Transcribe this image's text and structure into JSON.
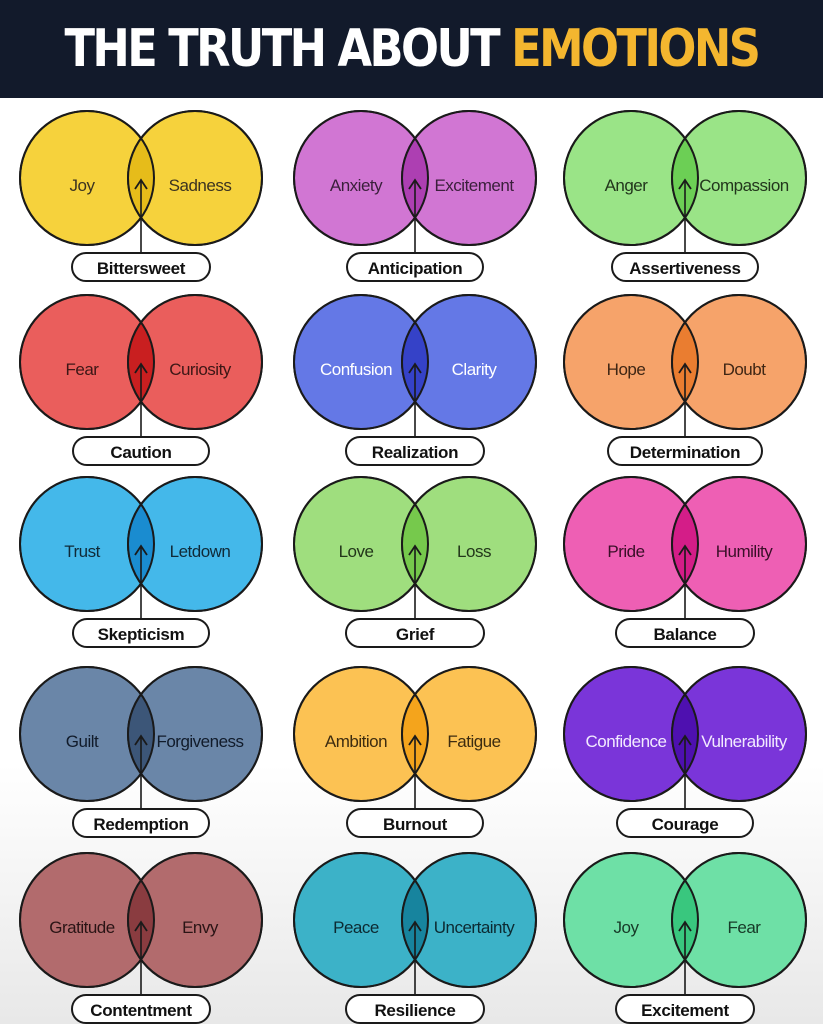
{
  "header": {
    "title_part1": "THE TRUTH ABOUT",
    "title_part2": "EMOTIONS"
  },
  "cards": [
    {
      "left": "Joy",
      "right": "Sadness",
      "result": "Bittersweet",
      "color": "#f6d23c",
      "overlap": "#e6bc1a",
      "text": "#3b3320"
    },
    {
      "left": "Anxiety",
      "right": "Excitement",
      "result": "Anticipation",
      "color": "#d176d3",
      "overlap": "#ad3fb2",
      "text": "#3a1f3b"
    },
    {
      "left": "Anger",
      "right": "Compassion",
      "result": "Assertiveness",
      "color": "#9ae487",
      "overlap": "#6ccf55",
      "text": "#22361c"
    },
    {
      "left": "Fear",
      "right": "Curiosity",
      "result": "Caution",
      "color": "#ea5e5c",
      "overlap": "#c91f20",
      "text": "#3d1716"
    },
    {
      "left": "Confusion",
      "right": "Clarity",
      "result": "Realization",
      "color": "#6478e6",
      "overlap": "#3542c8",
      "text": "#ffffff"
    },
    {
      "left": "Hope",
      "right": "Doubt",
      "result": "Determination",
      "color": "#f6a36a",
      "overlap": "#ea7d30",
      "text": "#3f2614"
    },
    {
      "left": "Trust",
      "right": "Letdown",
      "result": "Skepticism",
      "color": "#44b8ea",
      "overlap": "#1a8cd0",
      "text": "#102a38"
    },
    {
      "left": "Love",
      "right": "Loss",
      "result": "Grief",
      "color": "#9fde7e",
      "overlap": "#76c94c",
      "text": "#22361a"
    },
    {
      "left": "Pride",
      "right": "Humility",
      "result": "Balance",
      "color": "#ee5fb4",
      "overlap": "#d41d88",
      "text": "#3a0f28"
    },
    {
      "left": "Guilt",
      "right": "Forgiveness",
      "result": "Redemption",
      "color": "#6a86a8",
      "overlap": "#3c5678",
      "text": "#111b2a"
    },
    {
      "left": "Ambition",
      "right": "Fatigue",
      "result": "Burnout",
      "color": "#fcc253",
      "overlap": "#f4a41c",
      "text": "#3d2c10"
    },
    {
      "left": "Confidence",
      "right": "Vulnerability",
      "result": "Courage",
      "color": "#7a35d9",
      "overlap": "#4e10b0",
      "text": "#f2eaff"
    },
    {
      "left": "Gratitude",
      "right": "Envy",
      "result": "Contentment",
      "color": "#b26b6d",
      "overlap": "#8a3c40",
      "text": "#2a1415"
    },
    {
      "left": "Peace",
      "right": "Uncertainty",
      "result": "Resilience",
      "color": "#3cb2c8",
      "overlap": "#17849e",
      "text": "#0c2a32"
    },
    {
      "left": "Joy",
      "right": "Fear",
      "result": "Excitement",
      "color": "#6ee0a6",
      "overlap": "#39c77e",
      "text": "#173a28"
    }
  ]
}
